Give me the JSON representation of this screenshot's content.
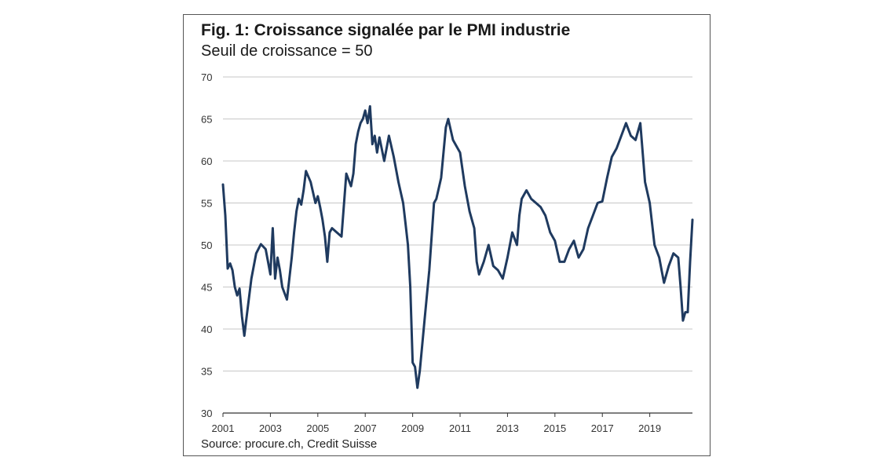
{
  "title": "Fig. 1: Croissance signalée par le PMI industrie",
  "subtitle": "Seuil de croissance = 50",
  "source": "Source: procure.ch, Credit Suisse",
  "colors": {
    "line": "#1f3a5f",
    "grid": "#b5b5b5",
    "axis": "#333333"
  },
  "chart_data": {
    "type": "line",
    "title": "Fig. 1: Croissance signalée par le PMI industrie",
    "subtitle": "Seuil de croissance = 50",
    "xlabel": "",
    "ylabel": "",
    "xlim": [
      2001,
      2020.8
    ],
    "ylim": [
      30,
      70
    ],
    "grid": true,
    "yticks": [
      70,
      65,
      60,
      55,
      50,
      45,
      40,
      35,
      30
    ],
    "xticks": [
      "2001",
      "2003",
      "2005",
      "2007",
      "2009",
      "2011",
      "2013",
      "2015",
      "2017",
      "2019"
    ],
    "series": [
      {
        "name": "",
        "x": [
          2001.0,
          2001.1,
          2001.2,
          2001.3,
          2001.4,
          2001.5,
          2001.6,
          2001.7,
          2001.8,
          2001.9,
          2002.0,
          2002.2,
          2002.4,
          2002.6,
          2002.8,
          2002.9,
          2003.0,
          2003.1,
          2003.2,
          2003.3,
          2003.4,
          2003.5,
          2003.7,
          2003.9,
          2004.0,
          2004.1,
          2004.2,
          2004.3,
          2004.4,
          2004.5,
          2004.7,
          2004.9,
          2005.0,
          2005.1,
          2005.2,
          2005.3,
          2005.4,
          2005.5,
          2005.6,
          2005.8,
          2006.0,
          2006.2,
          2006.4,
          2006.5,
          2006.6,
          2006.7,
          2006.8,
          2006.9,
          2007.0,
          2007.1,
          2007.2,
          2007.3,
          2007.4,
          2007.5,
          2007.6,
          2007.8,
          2008.0,
          2008.2,
          2008.4,
          2008.6,
          2008.7,
          2008.8,
          2008.9,
          2009.0,
          2009.1,
          2009.2,
          2009.3,
          2009.5,
          2009.7,
          2009.9,
          2010.0,
          2010.2,
          2010.4,
          2010.5,
          2010.7,
          2010.8,
          2011.0,
          2011.2,
          2011.4,
          2011.6,
          2011.7,
          2011.8,
          2012.0,
          2012.2,
          2012.4,
          2012.6,
          2012.8,
          2013.0,
          2013.2,
          2013.4,
          2013.5,
          2013.6,
          2013.8,
          2014.0,
          2014.2,
          2014.4,
          2014.6,
          2014.8,
          2015.0,
          2015.2,
          2015.4,
          2015.6,
          2015.8,
          2016.0,
          2016.2,
          2016.4,
          2016.6,
          2016.8,
          2017.0,
          2017.2,
          2017.4,
          2017.6,
          2017.8,
          2018.0,
          2018.2,
          2018.4,
          2018.6,
          2018.8,
          2019.0,
          2019.2,
          2019.4,
          2019.5,
          2019.6,
          2019.8,
          2020.0,
          2020.2,
          2020.3,
          2020.4,
          2020.5,
          2020.6,
          2020.7,
          2020.8
        ],
        "values": [
          57.2,
          53.5,
          47.2,
          47.8,
          47.0,
          45.0,
          44.0,
          44.8,
          41.5,
          39.2,
          41.5,
          46.0,
          49.0,
          50.1,
          49.5,
          48.0,
          46.5,
          52.0,
          46.0,
          48.5,
          47.0,
          45.0,
          43.5,
          48.5,
          51.5,
          54.0,
          55.5,
          54.8,
          56.5,
          58.8,
          57.5,
          55.0,
          55.8,
          54.5,
          53.0,
          51.0,
          48.0,
          51.5,
          52.0,
          51.5,
          51.0,
          58.5,
          57.0,
          58.5,
          62.0,
          63.5,
          64.5,
          65.0,
          66.0,
          64.5,
          66.5,
          62.0,
          63.0,
          61.0,
          62.8,
          60.0,
          63.0,
          60.5,
          57.5,
          55.0,
          52.5,
          50.0,
          45.0,
          36.0,
          35.5,
          33.0,
          35.0,
          41.0,
          47.0,
          55.0,
          55.5,
          58.0,
          64.0,
          65.0,
          62.5,
          62.0,
          61.0,
          57.0,
          54.0,
          52.0,
          48.0,
          46.5,
          48.0,
          50.0,
          47.5,
          47.0,
          46.0,
          48.5,
          51.5,
          50.0,
          53.5,
          55.5,
          56.5,
          55.5,
          55.0,
          54.5,
          53.5,
          51.5,
          50.5,
          48.0,
          48.0,
          49.5,
          50.5,
          48.5,
          49.5,
          52.0,
          53.5,
          55.0,
          55.2,
          58.0,
          60.5,
          61.5,
          63.0,
          64.5,
          63.0,
          62.5,
          64.5,
          57.5,
          55.0,
          50.0,
          48.5,
          47.0,
          45.5,
          47.5,
          49.0,
          48.5,
          45.0,
          41.0,
          42.0,
          42.0,
          48.0,
          53.0
        ]
      }
    ]
  }
}
